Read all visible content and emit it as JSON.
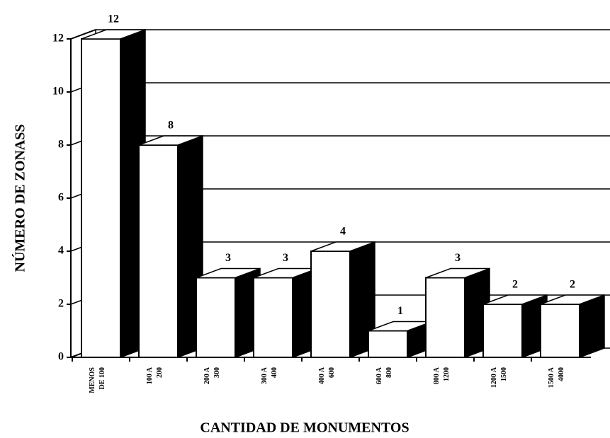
{
  "chart_data": {
    "type": "bar3d",
    "y_label": "NÚMERO DE ZONASS",
    "x_label": "CANTIDAD DE MONUMENTOS",
    "categories": [
      [
        "MENOS",
        "DE 100"
      ],
      [
        "100 A",
        "200"
      ],
      [
        "200 A",
        "300"
      ],
      [
        "300 A",
        "400"
      ],
      [
        "400 A",
        "600"
      ],
      [
        "600 A",
        "800"
      ],
      [
        "800 A",
        "1200"
      ],
      [
        "1200 A",
        "1500"
      ],
      [
        "1500 A",
        "4000"
      ]
    ],
    "values": [
      12,
      8,
      3,
      3,
      4,
      1,
      3,
      2,
      2
    ],
    "ylim": [
      0,
      12
    ],
    "yticks": [
      0,
      2,
      4,
      6,
      8,
      10,
      12
    ],
    "grid": true,
    "color": "#ffffff",
    "side_color": "#000000"
  }
}
